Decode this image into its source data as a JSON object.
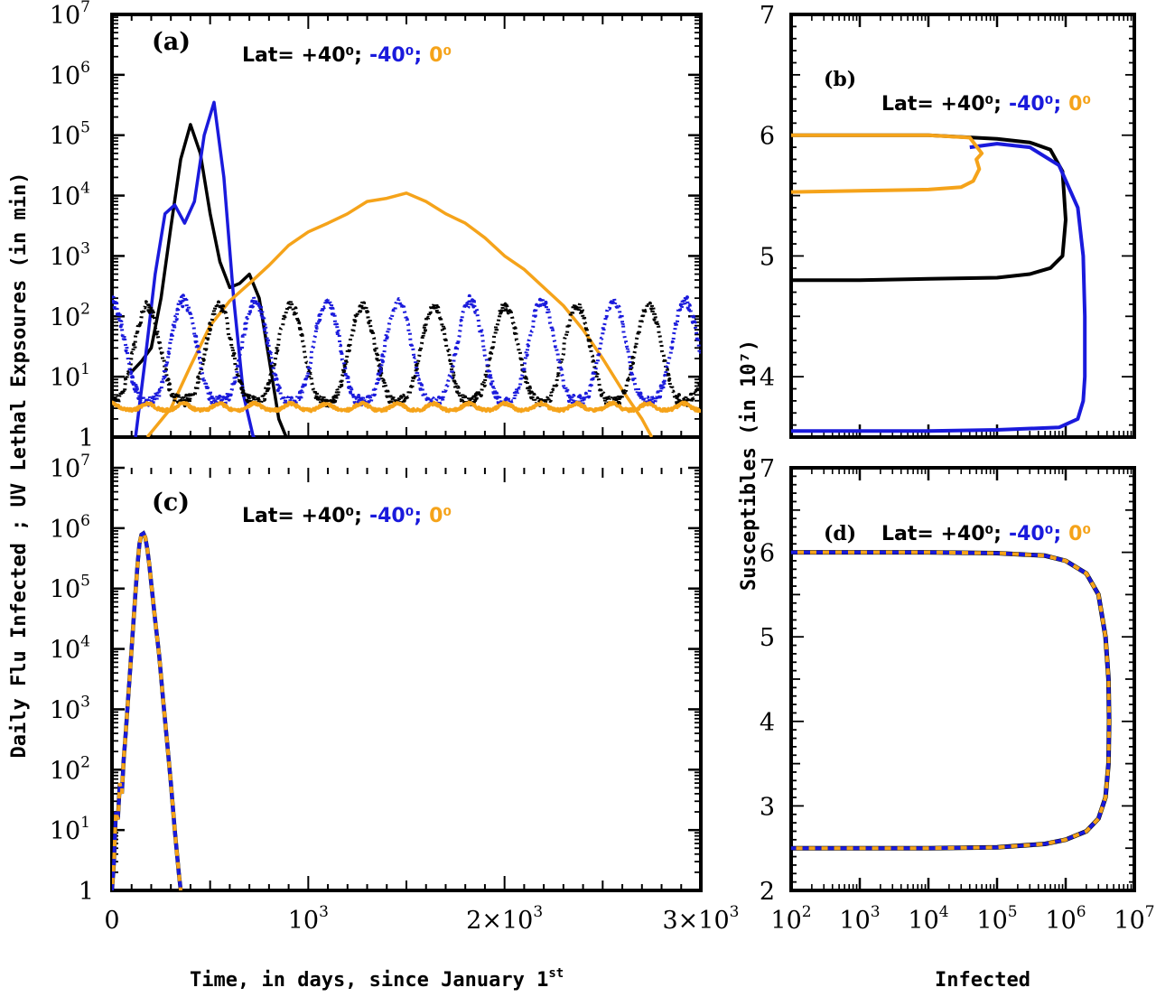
{
  "colors": {
    "north": "#000000",
    "south": "#1a1adc",
    "equator": "#f5a31a"
  },
  "axis_titles": {
    "left_y": "Daily Flu Infected ; UV Lethal Expsoures (in min)",
    "right_y": "Susceptibles (in 10⁷)",
    "bottom_x_left": "Time, in days, since January 1",
    "bottom_x_left_sup": "st",
    "bottom_x_right": "Infected"
  },
  "legend": {
    "prefix": "Lat= ",
    "north": "+40⁰;",
    "south": "-40⁰;",
    "equator": "0⁰"
  },
  "chart_data": [
    {
      "panel": "(a)",
      "type": "line",
      "x_range": [
        0,
        3000
      ],
      "y_scale": "log",
      "y_range": [
        1,
        10000000
      ],
      "x_ticks": [
        {
          "value": 0,
          "label": "0",
          "sup": ""
        },
        {
          "value": 1000,
          "label": "10",
          "sup": "3"
        },
        {
          "value": 2000,
          "label": "2×10",
          "sup": "3"
        },
        {
          "value": 3000,
          "label": "3×10",
          "sup": "3"
        }
      ],
      "y_ticks": [
        {
          "value": 1,
          "label": "1",
          "sup": ""
        },
        {
          "value": 10,
          "label": "10",
          "sup": "1"
        },
        {
          "value": 100,
          "label": "10",
          "sup": "2"
        },
        {
          "value": 1000,
          "label": "10",
          "sup": "3"
        },
        {
          "value": 10000,
          "label": "10",
          "sup": "4"
        },
        {
          "value": 100000,
          "label": "10",
          "sup": "5"
        },
        {
          "value": 1000000,
          "label": "10",
          "sup": "6"
        },
        {
          "value": 10000000,
          "label": "10",
          "sup": "7"
        }
      ],
      "series": [
        {
          "key": "north",
          "style": "solid",
          "x": [
            100,
            150,
            200,
            250,
            300,
            350,
            400,
            450,
            500,
            550,
            600,
            650,
            700,
            750,
            800,
            850,
            900
          ],
          "y": [
            12,
            18,
            30,
            200,
            3000,
            40000,
            150000,
            50000,
            5000,
            800,
            300,
            350,
            500,
            200,
            20,
            2,
            0.8
          ]
        },
        {
          "key": "south",
          "style": "solid",
          "x": [
            120,
            170,
            220,
            270,
            320,
            370,
            420,
            470,
            520,
            570,
            620,
            670,
            720,
            770
          ],
          "y": [
            1,
            20,
            500,
            5000,
            7000,
            3500,
            8000,
            100000,
            350000,
            20000,
            200,
            5,
            1,
            0.8
          ]
        },
        {
          "key": "equator",
          "style": "solid",
          "x": [
            180,
            300,
            400,
            500,
            600,
            700,
            800,
            900,
            1000,
            1100,
            1200,
            1300,
            1400,
            1500,
            1600,
            1700,
            1800,
            1900,
            2000,
            2100,
            2200,
            2300,
            2400,
            2500,
            2600,
            2700,
            2750
          ],
          "y": [
            1,
            3,
            15,
            70,
            180,
            350,
            700,
            1500,
            2500,
            3500,
            5000,
            8000,
            9000,
            11000,
            8000,
            5000,
            3500,
            2000,
            1000,
            600,
            300,
            150,
            60,
            20,
            6,
            2,
            1
          ]
        },
        {
          "key": "north",
          "style": "dotted",
          "period": 365,
          "phase": 180,
          "low": 4,
          "high": 150
        },
        {
          "key": "south",
          "style": "dotted",
          "period": 365,
          "phase": 0,
          "low": 4,
          "high": 180
        },
        {
          "key": "equator",
          "style": "solid-noisy",
          "period": 182,
          "phase": 0,
          "low": 2.8,
          "high": 3.6
        }
      ]
    },
    {
      "panel": "(b)",
      "type": "line",
      "x_scale": "log",
      "x_range": [
        100,
        10000000
      ],
      "y_range": [
        3.5,
        7
      ],
      "y_ticks": [
        4,
        5,
        6,
        7
      ],
      "series": [
        {
          "key": "north",
          "x": [
            100,
            1000,
            10000,
            100000,
            300000,
            600000,
            900000,
            1000000,
            900000,
            600000,
            300000,
            100000,
            10000,
            1000,
            100
          ],
          "y": [
            6.0,
            6.0,
            6.0,
            5.97,
            5.94,
            5.88,
            5.7,
            5.3,
            5.0,
            4.9,
            4.85,
            4.82,
            4.81,
            4.8,
            4.8
          ]
        },
        {
          "key": "south",
          "x": [
            40000,
            100000,
            300000,
            800000,
            1500000,
            1800000,
            1900000,
            1900000,
            1800000,
            1500000,
            800000,
            100000,
            10000,
            1000,
            100
          ],
          "y": [
            5.9,
            5.93,
            5.9,
            5.75,
            5.4,
            5.0,
            4.5,
            4.0,
            3.8,
            3.65,
            3.58,
            3.56,
            3.55,
            3.55,
            3.55
          ]
        },
        {
          "key": "equator",
          "x": [
            100,
            1000,
            10000,
            40000,
            60000,
            50000,
            55000,
            45000,
            30000,
            10000,
            1000,
            100
          ],
          "y": [
            6.0,
            6.0,
            6.0,
            5.98,
            5.85,
            5.8,
            5.72,
            5.62,
            5.57,
            5.55,
            5.54,
            5.53
          ]
        }
      ]
    },
    {
      "panel": "(c)",
      "type": "line",
      "x_range": [
        0,
        3000
      ],
      "y_scale": "log",
      "y_range": [
        1,
        10000000
      ],
      "series": [
        {
          "key": "south",
          "style": "dashed-overlay",
          "x": [
            0,
            10,
            20,
            30,
            40,
            50,
            60,
            70,
            80,
            90,
            100,
            110,
            120,
            130,
            140,
            150,
            160,
            170,
            180,
            190,
            200,
            220,
            240,
            260,
            280,
            300,
            320,
            340,
            350
          ],
          "y": [
            1,
            3,
            20,
            15,
            60,
            40,
            150,
            400,
            1200,
            3500,
            10000,
            30000,
            90000,
            250000,
            550000,
            780000,
            820000,
            700000,
            450000,
            250000,
            120000,
            30000,
            8000,
            1500,
            300,
            60,
            10,
            2,
            1
          ]
        }
      ]
    },
    {
      "panel": "(d)",
      "type": "line",
      "x_scale": "log",
      "x_range": [
        100,
        10000000
      ],
      "y_range": [
        2,
        7
      ],
      "y_ticks": [
        2,
        3,
        4,
        5,
        6,
        7
      ],
      "x_ticks": [
        100,
        1000,
        10000,
        100000,
        1000000,
        10000000
      ],
      "series": [
        {
          "key": "south",
          "style": "dashed-overlay",
          "x": [
            100,
            1000,
            10000,
            100000,
            500000,
            1000000,
            2000000,
            3000000,
            3800000,
            4200000,
            4300000,
            4200000,
            3800000,
            3000000,
            2000000,
            1000000,
            500000,
            100000,
            10000,
            1000,
            100
          ],
          "y": [
            6.0,
            6.0,
            6.0,
            5.99,
            5.96,
            5.9,
            5.75,
            5.5,
            5.0,
            4.5,
            4.0,
            3.5,
            3.1,
            2.85,
            2.7,
            2.6,
            2.55,
            2.51,
            2.5,
            2.5,
            2.5
          ]
        }
      ]
    }
  ]
}
